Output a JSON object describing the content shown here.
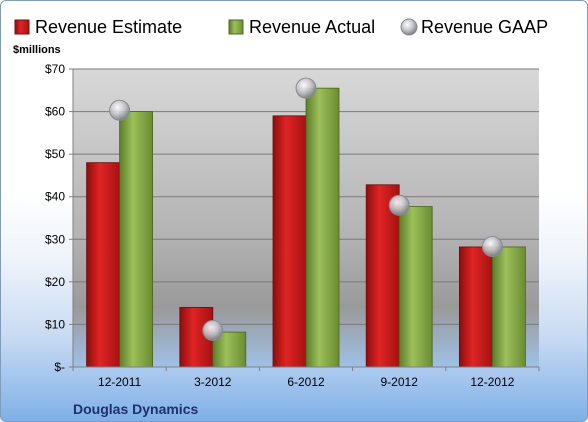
{
  "chart_data": {
    "type": "bar",
    "categories": [
      "12-2011",
      "3-2012",
      "6-2012",
      "9-2012",
      "12-2012"
    ],
    "series": [
      {
        "name": "Revenue Estimate",
        "kind": "bar",
        "color": "#d81e1e",
        "values": [
          48,
          14,
          59,
          42.8,
          28.2
        ]
      },
      {
        "name": "Revenue Actual",
        "kind": "bar",
        "color": "#8ab04a",
        "values": [
          60,
          8.2,
          65.5,
          37.7,
          28.2
        ]
      },
      {
        "name": "Revenue GAAP",
        "kind": "marker",
        "color": "#b8b8c0",
        "values": [
          60.3,
          8.6,
          65.5,
          38,
          28.3
        ]
      }
    ],
    "ylabel": "$millions",
    "ylim": [
      0,
      70
    ],
    "yticks": [
      0,
      10,
      20,
      30,
      40,
      50,
      60,
      70
    ],
    "ytick_labels": [
      "$-",
      "$10",
      "$20",
      "$30",
      "$40",
      "$50",
      "$60",
      "$70"
    ],
    "grid": true,
    "legend_position": "top"
  },
  "footer": {
    "company": "Douglas Dynamics"
  }
}
